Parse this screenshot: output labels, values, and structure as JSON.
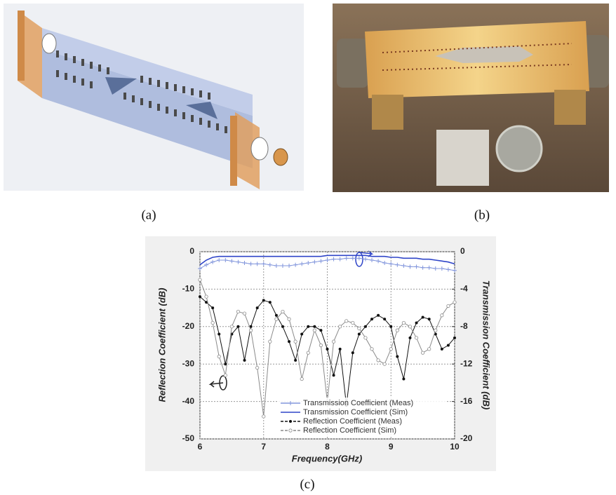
{
  "labels": {
    "a": "(a)",
    "b": "(b)",
    "c": "(c)"
  },
  "chart_data": {
    "type": "line",
    "xlabel": "Frequency(GHz)",
    "ylabel": "Reflection Coefficient (dB)",
    "y2label": "Transmission Coefficient (dB)",
    "x": [
      6,
      6.1,
      6.2,
      6.3,
      6.4,
      6.5,
      6.6,
      6.7,
      6.8,
      6.9,
      7,
      7.1,
      7.2,
      7.3,
      7.4,
      7.5,
      7.6,
      7.7,
      7.8,
      7.9,
      8,
      8.1,
      8.2,
      8.3,
      8.4,
      8.5,
      8.6,
      8.7,
      8.8,
      8.9,
      9,
      9.1,
      9.2,
      9.3,
      9.4,
      9.5,
      9.6,
      9.7,
      9.8,
      9.9,
      10
    ],
    "xlim": [
      6,
      10
    ],
    "xticks": [
      6,
      7,
      8,
      9,
      10
    ],
    "ylim": [
      -50,
      0
    ],
    "yticks": [
      0,
      -10,
      -20,
      -30,
      -40,
      -50
    ],
    "y2lim": [
      -20,
      0
    ],
    "y2ticks": [
      0,
      -4,
      -8,
      -12,
      -16,
      -20
    ],
    "grid": true,
    "series": [
      {
        "name": "Transmission Coefficient (Meas)",
        "color": "#8296dc",
        "marker": "plus",
        "axis": "y2",
        "values": [
          -1.8,
          -1.4,
          -1.1,
          -0.9,
          -0.9,
          -1.0,
          -1.1,
          -1.2,
          -1.3,
          -1.3,
          -1.3,
          -1.4,
          -1.5,
          -1.5,
          -1.5,
          -1.4,
          -1.3,
          -1.2,
          -1.1,
          -1.0,
          -0.9,
          -0.8,
          -0.8,
          -0.7,
          -0.7,
          -0.7,
          -0.8,
          -0.9,
          -1.0,
          -1.2,
          -1.3,
          -1.4,
          -1.5,
          -1.6,
          -1.6,
          -1.7,
          -1.7,
          -1.8,
          -1.8,
          -1.9,
          -2.0
        ]
      },
      {
        "name": "Transmission Coefficient (Sim)",
        "color": "#2f45c8",
        "marker": "none",
        "axis": "y2",
        "values": [
          -1.4,
          -0.9,
          -0.6,
          -0.5,
          -0.5,
          -0.5,
          -0.5,
          -0.5,
          -0.5,
          -0.5,
          -0.5,
          -0.5,
          -0.5,
          -0.5,
          -0.5,
          -0.5,
          -0.5,
          -0.5,
          -0.5,
          -0.5,
          -0.4,
          -0.4,
          -0.4,
          -0.4,
          -0.4,
          -0.4,
          -0.4,
          -0.5,
          -0.5,
          -0.5,
          -0.6,
          -0.6,
          -0.7,
          -0.7,
          -0.7,
          -0.8,
          -0.8,
          -0.9,
          -1.0,
          -1.1,
          -1.3
        ]
      },
      {
        "name": "Reflection Coefficient (Meas)",
        "color": "#111111",
        "marker": "dot",
        "values": [
          -12,
          -13.5,
          -15,
          -22,
          -30,
          -22,
          -20,
          -29,
          -20,
          -15,
          -13,
          -13.5,
          -17,
          -20,
          -24,
          -29,
          -22,
          -20,
          -20,
          -21,
          -26,
          -33,
          -26,
          -41,
          -27,
          -22,
          -20,
          -18,
          -17,
          -18,
          -20,
          -28,
          -34,
          -23,
          -19,
          -17.5,
          -18,
          -22,
          -26,
          -25,
          -23
        ]
      },
      {
        "name": "Reflection Coefficient (Sim)",
        "color": "#8a8a8a",
        "marker": "circle",
        "values": [
          -7.5,
          -12,
          -19,
          -28,
          -33,
          -20,
          -16,
          -16.5,
          -21,
          -31,
          -44,
          -24,
          -18,
          -16,
          -18,
          -24,
          -34,
          -27,
          -21,
          -25,
          -40,
          -24,
          -20,
          -18.5,
          -19,
          -20.5,
          -23,
          -26,
          -29,
          -30,
          -26,
          -21,
          -19,
          -20,
          -23,
          -27,
          -26,
          -21,
          -17,
          -14.5,
          -13.5
        ]
      }
    ]
  }
}
